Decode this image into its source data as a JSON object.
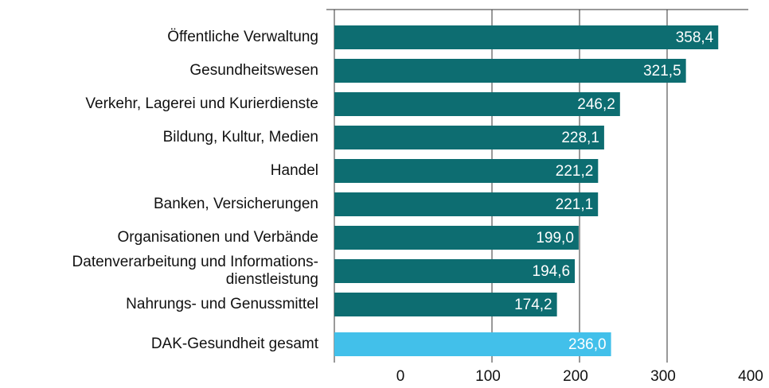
{
  "chart_data": {
    "type": "bar",
    "orientation": "horizontal",
    "categories": [
      "Öffentliche Verwaltung",
      "Gesundheitswesen",
      "Verkehr, Lagerei und Kurierdienste",
      "Bildung, Kultur, Medien",
      "Handel",
      "Banken, Versicherungen",
      "Organisationen und Verbände",
      "Datenverarbeitung und Informations-\ndienstleistung",
      "Nahrungs- und Genussmittel",
      "DAK-Gesundheit gesamt"
    ],
    "values": [
      358.4,
      321.5,
      246.2,
      228.1,
      221.2,
      221.1,
      199.0,
      194.6,
      174.2,
      236.0
    ],
    "value_labels": [
      "358,4",
      "321,5",
      "246,2",
      "228,1",
      "221,2",
      "221,1",
      "199,0",
      "194,6",
      "174,2",
      "236,0"
    ],
    "colors": [
      "#0d6d71",
      "#0d6d71",
      "#0d6d71",
      "#0d6d71",
      "#0d6d71",
      "#0d6d71",
      "#0d6d71",
      "#0d6d71",
      "#0d6d71",
      "#42c0ea"
    ],
    "xlim": [
      -80,
      400
    ],
    "xticks": [
      0,
      100,
      200,
      300,
      400
    ],
    "grid": true
  }
}
